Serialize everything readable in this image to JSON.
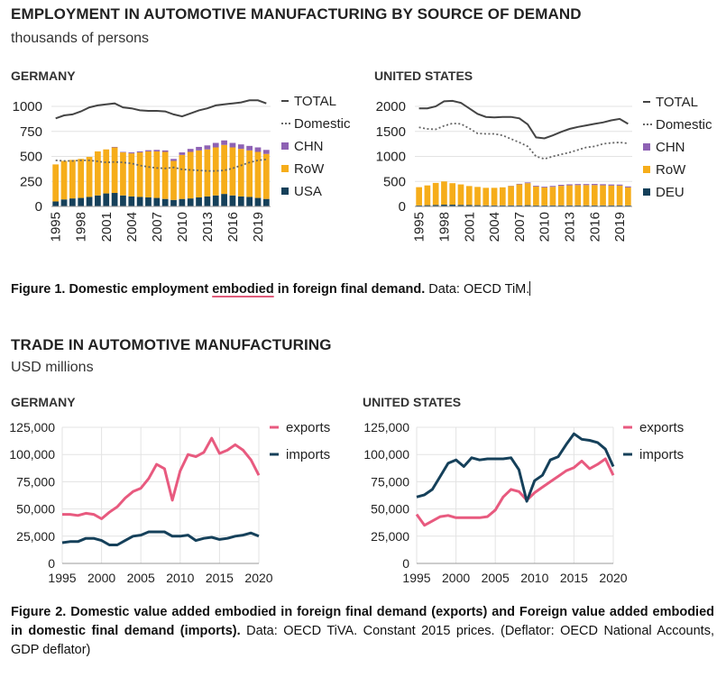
{
  "section1": {
    "title": "EMPLOYMENT IN AUTOMOTIVE MANUFACTURING BY SOURCE OF DEMAND",
    "unit": "thousands of persons"
  },
  "section2": {
    "title": "TRADE IN AUTOMOTIVE MANUFACTURING",
    "unit": "USD millions"
  },
  "figure1_caption": {
    "bold_a": "Figure 1. Domestic employment ",
    "bold_underlined": "embodied",
    "bold_b": " in foreign final demand.",
    "normal": " Data: OECD TiM."
  },
  "figure2_caption": {
    "bold": "Figure 2. Domestic value added embodied in foreign final demand (exports) and Foreign value added embodied in domestic final demand (imports).",
    "normal": " Data: OECD TiVA. Constant 2015 prices. (Deflator: OECD National Accounts, GDP deflator)"
  },
  "colors": {
    "total": "#444444",
    "domestic": "#666666",
    "chn": "#8e62b4",
    "row": "#f6ad1a",
    "usa": "#15405a",
    "exports": "#e85a7f",
    "imports": "#15405a"
  },
  "chart_data": [
    {
      "type": "bar",
      "title": "GERMANY",
      "stacked": true,
      "x": [
        1995,
        1996,
        1997,
        1998,
        1999,
        2000,
        2001,
        2002,
        2003,
        2004,
        2005,
        2006,
        2007,
        2008,
        2009,
        2010,
        2011,
        2012,
        2013,
        2014,
        2015,
        2016,
        2017,
        2018,
        2019,
        2020
      ],
      "xticks": [
        "1995",
        "1998",
        "2001",
        "2004",
        "2007",
        "2010",
        "2013",
        "2016",
        "2019"
      ],
      "ylim": [
        0,
        1000
      ],
      "yticks": [
        "0",
        "250",
        "500",
        "750",
        "1000"
      ],
      "series": [
        {
          "name": "USA",
          "kind": "bar",
          "values": [
            50,
            70,
            80,
            85,
            95,
            110,
            130,
            135,
            110,
            100,
            95,
            90,
            85,
            75,
            65,
            75,
            80,
            90,
            100,
            110,
            125,
            110,
            100,
            95,
            85,
            75
          ]
        },
        {
          "name": "RoW",
          "kind": "bar",
          "values": [
            370,
            385,
            385,
            390,
            400,
            440,
            440,
            455,
            430,
            430,
            445,
            460,
            465,
            470,
            390,
            440,
            465,
            470,
            470,
            480,
            490,
            480,
            475,
            465,
            460,
            450
          ]
        },
        {
          "name": "CHN",
          "kind": "bar",
          "values": [
            0,
            0,
            0,
            0,
            0,
            0,
            0,
            5,
            5,
            10,
            10,
            12,
            15,
            15,
            20,
            25,
            30,
            35,
            40,
            45,
            45,
            45,
            45,
            45,
            45,
            40
          ]
        },
        {
          "name": "TOTAL",
          "kind": "line",
          "values": [
            880,
            910,
            920,
            950,
            990,
            1010,
            1020,
            1030,
            990,
            980,
            960,
            955,
            955,
            950,
            920,
            900,
            930,
            960,
            980,
            1010,
            1020,
            1030,
            1040,
            1060,
            1060,
            1030
          ]
        },
        {
          "name": "Domestic",
          "kind": "dotted-line",
          "values": [
            460,
            455,
            455,
            460,
            460,
            450,
            440,
            445,
            440,
            430,
            410,
            395,
            385,
            380,
            390,
            370,
            365,
            360,
            355,
            355,
            360,
            380,
            410,
            440,
            460,
            470
          ]
        }
      ],
      "legend": [
        "TOTAL",
        "Domestic",
        "CHN",
        "RoW",
        "USA"
      ],
      "legend_position": "right"
    },
    {
      "type": "bar",
      "title": "UNITED STATES",
      "stacked": true,
      "x": [
        1995,
        1996,
        1997,
        1998,
        1999,
        2000,
        2001,
        2002,
        2003,
        2004,
        2005,
        2006,
        2007,
        2008,
        2009,
        2010,
        2011,
        2012,
        2013,
        2014,
        2015,
        2016,
        2017,
        2018,
        2019,
        2020
      ],
      "xticks": [
        "1995",
        "1998",
        "2001",
        "2004",
        "2007",
        "2010",
        "2013",
        "2016",
        "2019"
      ],
      "ylim": [
        0,
        2000
      ],
      "yticks": [
        "0",
        "500",
        "1000",
        "1500",
        "2000"
      ],
      "series": [
        {
          "name": "DEU",
          "kind": "bar",
          "values": [
            20,
            25,
            30,
            35,
            35,
            30,
            28,
            25,
            22,
            22,
            22,
            22,
            22,
            25,
            20,
            20,
            22,
            22,
            22,
            22,
            22,
            22,
            22,
            22,
            22,
            20
          ]
        },
        {
          "name": "RoW",
          "kind": "bar",
          "values": [
            365,
            395,
            440,
            465,
            430,
            410,
            380,
            365,
            350,
            350,
            360,
            385,
            420,
            440,
            380,
            360,
            370,
            390,
            400,
            405,
            405,
            405,
            400,
            395,
            395,
            360
          ]
        },
        {
          "name": "CHN",
          "kind": "bar",
          "values": [
            0,
            0,
            0,
            0,
            0,
            0,
            0,
            0,
            0,
            0,
            0,
            5,
            10,
            15,
            15,
            15,
            18,
            20,
            20,
            20,
            20,
            22,
            22,
            22,
            20,
            20
          ]
        },
        {
          "name": "TOTAL",
          "kind": "line",
          "values": [
            1960,
            1960,
            2000,
            2100,
            2110,
            2070,
            1960,
            1850,
            1790,
            1780,
            1790,
            1790,
            1760,
            1640,
            1380,
            1360,
            1420,
            1490,
            1550,
            1590,
            1620,
            1650,
            1680,
            1720,
            1750,
            1650
          ]
        },
        {
          "name": "Domestic",
          "kind": "dotted-line",
          "values": [
            1580,
            1550,
            1540,
            1610,
            1660,
            1650,
            1560,
            1460,
            1450,
            1450,
            1420,
            1350,
            1280,
            1200,
            1000,
            950,
            1000,
            1040,
            1080,
            1130,
            1180,
            1200,
            1250,
            1270,
            1280,
            1260
          ]
        }
      ],
      "legend": [
        "TOTAL",
        "Domestic",
        "CHN",
        "RoW",
        "DEU"
      ],
      "legend_position": "right"
    },
    {
      "type": "line",
      "title": "GERMANY",
      "x": [
        1995,
        1996,
        1997,
        1998,
        1999,
        2000,
        2001,
        2002,
        2003,
        2004,
        2005,
        2006,
        2007,
        2008,
        2009,
        2010,
        2011,
        2012,
        2013,
        2014,
        2015,
        2016,
        2017,
        2018,
        2019,
        2020
      ],
      "xticks": [
        "1995",
        "2000",
        "2005",
        "2010",
        "2015",
        "2020"
      ],
      "ylim": [
        0,
        125000
      ],
      "yticks": [
        "0",
        "25,000",
        "50,000",
        "75,000",
        "100,000",
        "125,000"
      ],
      "series": [
        {
          "name": "exports",
          "values": [
            45000,
            45000,
            44000,
            46000,
            45000,
            41000,
            47000,
            52000,
            60000,
            66000,
            69000,
            78000,
            91000,
            87000,
            58000,
            85000,
            100000,
            98000,
            102000,
            115000,
            101000,
            104000,
            109000,
            104000,
            95000,
            81000
          ]
        },
        {
          "name": "imports",
          "values": [
            19000,
            20000,
            20000,
            23000,
            23000,
            21000,
            17000,
            17000,
            21000,
            25000,
            26000,
            29000,
            29000,
            29000,
            25000,
            25000,
            26000,
            21000,
            23000,
            24000,
            22000,
            23000,
            25000,
            26000,
            28000,
            25000
          ]
        }
      ],
      "legend": [
        "exports",
        "imports"
      ],
      "legend_position": "right"
    },
    {
      "type": "line",
      "title": "UNITED STATES",
      "x": [
        1995,
        1996,
        1997,
        1998,
        1999,
        2000,
        2001,
        2002,
        2003,
        2004,
        2005,
        2006,
        2007,
        2008,
        2009,
        2010,
        2011,
        2012,
        2013,
        2014,
        2015,
        2016,
        2017,
        2018,
        2019,
        2020
      ],
      "xticks": [
        "1995",
        "2000",
        "2005",
        "2010",
        "2015",
        "2020"
      ],
      "ylim": [
        0,
        125000
      ],
      "yticks": [
        "0",
        "25,000",
        "50,000",
        "75,000",
        "100,000",
        "125,000"
      ],
      "series": [
        {
          "name": "exports",
          "values": [
            45000,
            35000,
            39000,
            43000,
            44000,
            42000,
            42000,
            42000,
            42000,
            43000,
            49000,
            61000,
            68000,
            66000,
            58000,
            65000,
            70000,
            75000,
            80000,
            85000,
            88000,
            94000,
            87000,
            91000,
            96000,
            81000
          ]
        },
        {
          "name": "imports",
          "values": [
            61000,
            63000,
            68000,
            80000,
            92000,
            95000,
            89000,
            97000,
            95000,
            96000,
            96000,
            96000,
            97000,
            86000,
            57000,
            76000,
            81000,
            95000,
            98000,
            109000,
            119000,
            114000,
            113000,
            111000,
            105000,
            89000
          ]
        }
      ],
      "legend": [
        "exports",
        "imports"
      ],
      "legend_position": "right"
    }
  ]
}
